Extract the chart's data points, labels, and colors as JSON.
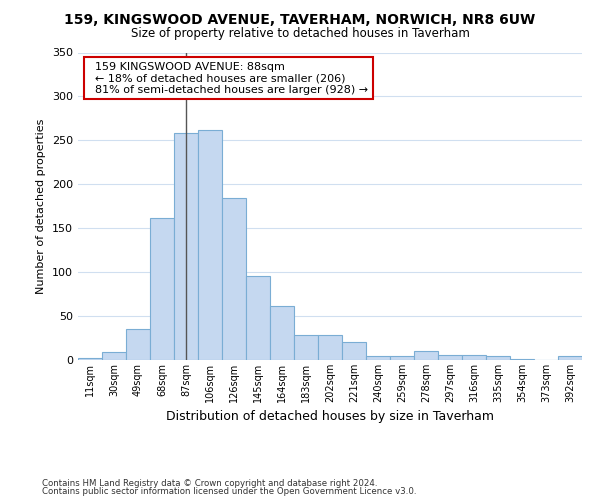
{
  "title1": "159, KINGSWOOD AVENUE, TAVERHAM, NORWICH, NR8 6UW",
  "title2": "Size of property relative to detached houses in Taverham",
  "xlabel": "Distribution of detached houses by size in Taverham",
  "ylabel": "Number of detached properties",
  "categories": [
    "11sqm",
    "30sqm",
    "49sqm",
    "68sqm",
    "87sqm",
    "106sqm",
    "126sqm",
    "145sqm",
    "164sqm",
    "183sqm",
    "202sqm",
    "221sqm",
    "240sqm",
    "259sqm",
    "278sqm",
    "297sqm",
    "316sqm",
    "335sqm",
    "354sqm",
    "373sqm",
    "392sqm"
  ],
  "values": [
    2,
    9,
    35,
    162,
    258,
    262,
    184,
    96,
    62,
    28,
    28,
    20,
    5,
    5,
    10,
    6,
    6,
    4,
    1,
    0,
    4
  ],
  "bar_color": "#c5d8f0",
  "bar_edge_color": "#7aadd4",
  "highlight_index": 4,
  "highlight_line_color": "#555555",
  "annotation_text": "  159 KINGSWOOD AVENUE: 88sqm\n  ← 18% of detached houses are smaller (206)\n  81% of semi-detached houses are larger (928) →",
  "annotation_box_color": "white",
  "annotation_box_edge_color": "#cc0000",
  "ylim": [
    0,
    350
  ],
  "yticks": [
    0,
    50,
    100,
    150,
    200,
    250,
    300,
    350
  ],
  "footer1": "Contains HM Land Registry data © Crown copyright and database right 2024.",
  "footer2": "Contains public sector information licensed under the Open Government Licence v3.0.",
  "bg_color": "#ffffff",
  "plot_bg_color": "#ffffff",
  "grid_color": "#d0dff0"
}
